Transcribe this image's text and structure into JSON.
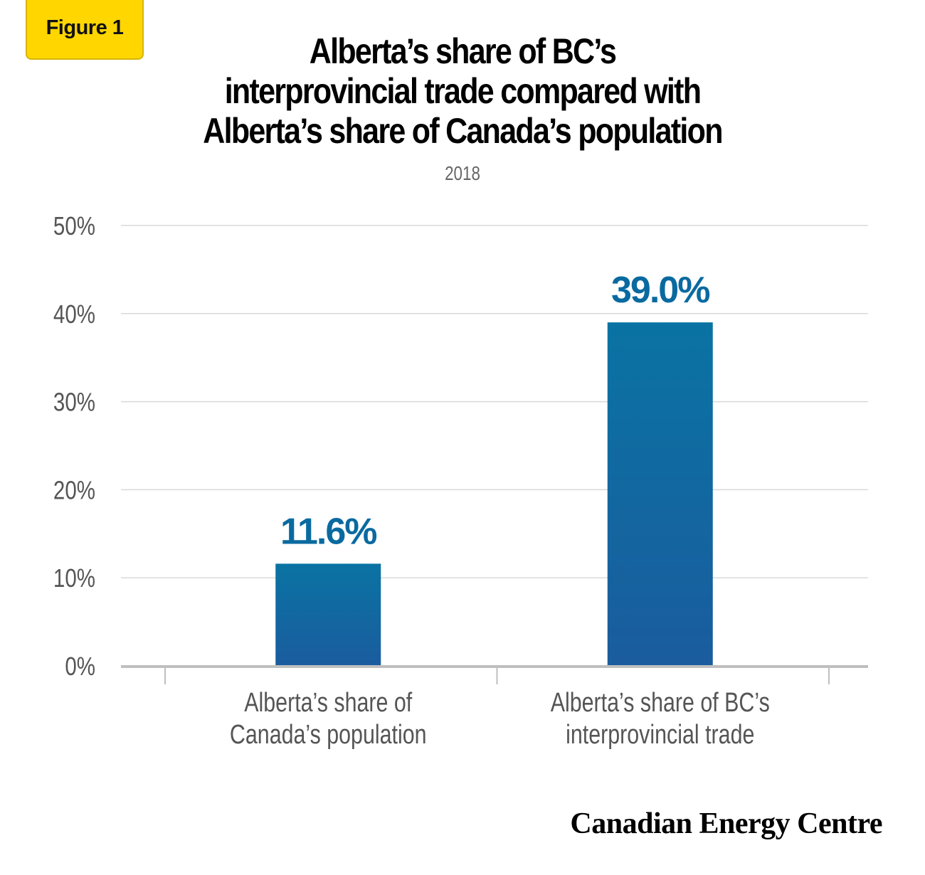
{
  "badge": {
    "label": "Figure 1"
  },
  "logo": {
    "text": "Canadian Energy Centre"
  },
  "colors": {
    "bar_top": "#0a73a3",
    "bar_bottom": "#1a5c9e",
    "label": "#0a6aa0",
    "badge": "#ffd600"
  },
  "chart_data": {
    "type": "bar",
    "title_lines": [
      "Alberta’s share of BC’s",
      "interprovincial trade compared with",
      "Alberta’s share of Canada’s population"
    ],
    "subtitle": "2018",
    "categories": [
      [
        "Alberta’s share of",
        "Canada’s population"
      ],
      [
        "Alberta’s share of BC’s",
        "interprovincial trade"
      ]
    ],
    "values": [
      11.6,
      39.0
    ],
    "data_labels": [
      "11.6%",
      "39.0%"
    ],
    "yticks": [
      0,
      10,
      20,
      30,
      40,
      50
    ],
    "ytick_labels": [
      "0%",
      "10%",
      "20%",
      "30%",
      "40%",
      "50%"
    ],
    "ylim": [
      0,
      50
    ],
    "grid": true,
    "legend": "none"
  }
}
